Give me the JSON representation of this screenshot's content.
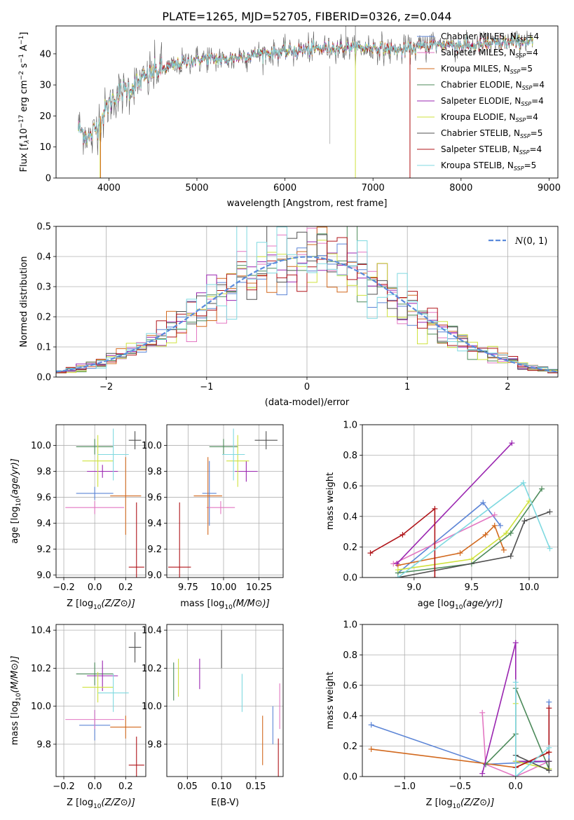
{
  "figure_title": "PLATE=1265, MJD=52705, FIBERID=0326, z=0.044",
  "legend": [
    "Chabrier MILES, N",
    "Salpeter MILES, N",
    "Kroupa MILES, N",
    "Chabrier ELODIE, N",
    "Salpeter ELODIE, N",
    "Kroupa ELODIE, N",
    "Chabrier STELIB, N",
    "Salpeter STELIB, N",
    "Kroupa STELIB, N"
  ],
  "legend_sub": "SSP",
  "legend_suffix": [
    "=4",
    "=4",
    "=5",
    "=4",
    "=4",
    "=4",
    "=5",
    "=4",
    "=5"
  ],
  "colors": [
    "#5c85d6",
    "#e377c2",
    "#d2691e",
    "#4c8a5a",
    "#9a25b0",
    "#cfe23e",
    "#505050",
    "#b0151a",
    "#7fd9e0"
  ],
  "gauss_color": "#5b8bdc",
  "chart_data": [
    {
      "id": "spectrum",
      "type": "line",
      "xlabel": "wavelength [Angstrom, rest frame]",
      "ylabel_parts": [
        "Flux [f",
        "λ",
        "10",
        "−17",
        " erg cm",
        "−2",
        " s",
        "−1",
        " A",
        "−1",
        "]"
      ],
      "xlim": [
        3400,
        9100
      ],
      "ylim": [
        0,
        49
      ],
      "xticks": [
        4000,
        5000,
        6000,
        7000,
        8000,
        9000
      ],
      "yticks": [
        0,
        10,
        20,
        30,
        40
      ],
      "continuum_knots": [
        [
          3650,
          16
        ],
        [
          3780,
          13
        ],
        [
          3900,
          18
        ],
        [
          4000,
          24
        ],
        [
          4100,
          27
        ],
        [
          4300,
          30
        ],
        [
          4500,
          34
        ],
        [
          4700,
          36
        ],
        [
          4900,
          37.5
        ],
        [
          5100,
          38.5
        ],
        [
          5300,
          38
        ],
        [
          5500,
          39
        ],
        [
          5700,
          40
        ],
        [
          5900,
          40.5
        ],
        [
          6100,
          41
        ],
        [
          6300,
          41.5
        ],
        [
          6500,
          42
        ],
        [
          6700,
          42
        ],
        [
          6900,
          42
        ],
        [
          7100,
          42
        ],
        [
          7300,
          41
        ],
        [
          7500,
          42
        ],
        [
          7700,
          43
        ],
        [
          7900,
          43
        ],
        [
          8100,
          42.5
        ],
        [
          8300,
          43
        ],
        [
          8500,
          43.5
        ],
        [
          8700,
          44
        ],
        [
          8820,
          44
        ]
      ],
      "dropouts": [
        [
          3900,
          0
        ],
        [
          6800,
          0
        ],
        [
          7420,
          0
        ]
      ]
    },
    {
      "id": "residuals",
      "type": "step",
      "xlabel": "(data-model)/error",
      "ylabel": "Normed distribution",
      "xlim": [
        -2.5,
        2.5
      ],
      "ylim": [
        0,
        0.5
      ],
      "xticks": [
        -2,
        -1,
        0,
        1,
        2
      ],
      "yticks": [
        0.0,
        0.1,
        0.2,
        0.3,
        0.4,
        0.5
      ],
      "gaussian_label": "N(0,1)",
      "bin_width": 0.1
    },
    {
      "id": "age_vs_Z",
      "type": "errorbar",
      "xlabel": "Z [log10(Z/Z⊙)]",
      "ylabel": "age [log10(age/yr)]",
      "xlim": [
        -0.25,
        0.33
      ],
      "ylim": [
        8.98,
        10.16
      ],
      "xticks": [
        -0.2,
        0.0,
        0.2
      ],
      "yticks": [
        9.0,
        9.2,
        9.4,
        9.6,
        9.8,
        10.0
      ],
      "points": [
        {
          "x": 0.0,
          "y": 9.63,
          "xerr": 0.12,
          "yerr": 0.05
        },
        {
          "x": 0.0,
          "y": 9.52,
          "xerr": 0.19,
          "yerr": 0.05
        },
        {
          "x": 0.2,
          "y": 9.61,
          "xerr": 0.1,
          "yerr": 0.3
        },
        {
          "x": 0.0,
          "y": 9.99,
          "xerr": 0.12,
          "yerr": 0.06
        },
        {
          "x": 0.05,
          "y": 9.8,
          "xerr": 0.1,
          "yerr": 0.05
        },
        {
          "x": 0.02,
          "y": 9.88,
          "xerr": 0.1,
          "yerr": 0.2
        },
        {
          "x": 0.26,
          "y": 10.04,
          "xerr": 0.04,
          "yerr": 0.07
        },
        {
          "x": 0.27,
          "y": 9.06,
          "xerr": 0.05,
          "yerr": 0.5
        },
        {
          "x": 0.12,
          "y": 9.93,
          "xerr": 0.1,
          "yerr": 0.2
        }
      ]
    },
    {
      "id": "age_vs_mass",
      "type": "errorbar",
      "xlabel": "mass [log10(M/M⊙)]",
      "xlim": [
        9.6,
        10.42
      ],
      "ylim": [
        8.98,
        10.16
      ],
      "xticks": [
        9.75,
        10.0,
        10.25
      ],
      "yticks": [
        9.0,
        9.2,
        9.4,
        9.6,
        9.8,
        10.0
      ],
      "points": [
        {
          "x": 9.9,
          "y": 9.63,
          "xerr": 0.05,
          "yerr": 0.25
        },
        {
          "x": 9.98,
          "y": 9.52,
          "xerr": 0.1,
          "yerr": 0.05
        },
        {
          "x": 9.89,
          "y": 9.61,
          "xerr": 0.1,
          "yerr": 0.3
        },
        {
          "x": 10.0,
          "y": 9.99,
          "xerr": 0.1,
          "yerr": 0.06
        },
        {
          "x": 10.16,
          "y": 9.8,
          "xerr": 0.08,
          "yerr": 0.08
        },
        {
          "x": 10.1,
          "y": 9.88,
          "xerr": 0.08,
          "yerr": 0.2
        },
        {
          "x": 10.3,
          "y": 10.04,
          "xerr": 0.08,
          "yerr": 0.07
        },
        {
          "x": 9.69,
          "y": 9.06,
          "xerr": 0.08,
          "yerr": 0.5
        },
        {
          "x": 10.07,
          "y": 9.93,
          "xerr": 0.08,
          "yerr": 0.2
        }
      ]
    },
    {
      "id": "weight_vs_age",
      "type": "line",
      "xlabel": "age [log10(age/yr)]",
      "ylabel": "mass weight",
      "xlim": [
        8.55,
        10.25
      ],
      "ylim": [
        0,
        1.0
      ],
      "xticks": [
        9.0,
        9.5,
        10.0
      ],
      "yticks": [
        0.0,
        0.2,
        0.4,
        0.6,
        0.8,
        1.0
      ],
      "series": [
        {
          "points": [
            [
              8.86,
              0.03
            ],
            [
              9.6,
              0.49
            ],
            [
              9.75,
              0.34
            ]
          ]
        },
        {
          "points": [
            [
              8.82,
              0.09
            ],
            [
              9.7,
              0.41
            ]
          ]
        },
        {
          "points": [
            [
              8.86,
              0.08
            ],
            [
              9.4,
              0.16
            ],
            [
              9.62,
              0.28
            ],
            [
              9.7,
              0.34
            ],
            [
              9.78,
              0.18
            ]
          ]
        },
        {
          "points": [
            [
              8.86,
              0.03
            ],
            [
              9.5,
              0.09
            ],
            [
              9.84,
              0.29
            ],
            [
              10.11,
              0.58
            ]
          ]
        },
        {
          "points": [
            [
              8.85,
              0.09
            ],
            [
              9.85,
              0.88
            ]
          ]
        },
        {
          "points": [
            [
              8.86,
              0.05
            ],
            [
              9.5,
              0.12
            ],
            [
              9.8,
              0.29
            ],
            [
              10.0,
              0.5
            ]
          ]
        },
        {
          "points": [
            [
              8.86,
              0.0
            ],
            [
              9.84,
              0.14
            ],
            [
              9.96,
              0.37
            ],
            [
              10.18,
              0.43
            ]
          ]
        },
        {
          "points": [
            [
              8.62,
              0.16
            ],
            [
              8.9,
              0.28
            ],
            [
              9.18,
              0.45
            ],
            [
              9.18,
              0.0
            ]
          ]
        },
        {
          "points": [
            [
              8.86,
              0.0
            ],
            [
              9.95,
              0.62
            ],
            [
              10.18,
              0.19
            ]
          ]
        }
      ]
    },
    {
      "id": "mass_vs_Z",
      "type": "errorbar",
      "xlabel": "Z [log10(Z/Z⊙)]",
      "ylabel": "mass [log10(M/M⊙)]",
      "xlim": [
        -0.25,
        0.33
      ],
      "ylim": [
        9.63,
        10.43
      ],
      "xticks": [
        -0.2,
        0.0,
        0.2
      ],
      "yticks": [
        9.8,
        10.0,
        10.2,
        10.4
      ],
      "points": [
        {
          "x": 0.0,
          "y": 9.9,
          "xerr": 0.1,
          "yerr": 0.08
        },
        {
          "x": 0.0,
          "y": 9.93,
          "xerr": 0.19,
          "yerr": 0.05
        },
        {
          "x": 0.2,
          "y": 9.89,
          "xerr": 0.1,
          "yerr": 0.06
        },
        {
          "x": 0.0,
          "y": 10.17,
          "xerr": 0.12,
          "yerr": 0.06
        },
        {
          "x": 0.05,
          "y": 10.16,
          "xerr": 0.1,
          "yerr": 0.08
        },
        {
          "x": 0.02,
          "y": 10.1,
          "xerr": 0.1,
          "yerr": 0.08
        },
        {
          "x": 0.26,
          "y": 10.31,
          "xerr": 0.04,
          "yerr": 0.08
        },
        {
          "x": 0.27,
          "y": 9.69,
          "xerr": 0.05,
          "yerr": 0.15
        },
        {
          "x": 0.12,
          "y": 10.07,
          "xerr": 0.1,
          "yerr": 0.1
        }
      ]
    },
    {
      "id": "mass_vs_ebv",
      "type": "errorbar",
      "xlabel": "E(B-V)",
      "xlim": [
        0.02,
        0.19
      ],
      "ylim": [
        9.63,
        10.43
      ],
      "xticks": [
        0.05,
        0.1,
        0.15
      ],
      "yticks": [
        9.8,
        10.0,
        10.2,
        10.4
      ],
      "points": [
        {
          "x": 0.175,
          "y": 9.9,
          "xerr": 0,
          "yerr": 0.1
        },
        {
          "x": 0.185,
          "y": 10.0,
          "xerr": 0,
          "yerr": 0.12
        },
        {
          "x": 0.16,
          "y": 9.82,
          "xerr": 0,
          "yerr": 0.13
        },
        {
          "x": 0.03,
          "y": 10.13,
          "xerr": 0,
          "yerr": 0.1
        },
        {
          "x": 0.068,
          "y": 10.17,
          "xerr": 0,
          "yerr": 0.08
        },
        {
          "x": 0.037,
          "y": 10.15,
          "xerr": 0,
          "yerr": 0.1
        },
        {
          "x": 0.1,
          "y": 10.3,
          "xerr": 0,
          "yerr": 0.1
        },
        {
          "x": 0.183,
          "y": 9.72,
          "xerr": 0,
          "yerr": 0.11
        },
        {
          "x": 0.13,
          "y": 10.07,
          "xerr": 0,
          "yerr": 0.1
        }
      ]
    },
    {
      "id": "weight_vs_Z",
      "type": "line",
      "xlabel": "Z [log10(Z/Z⊙)]",
      "ylabel": "mass weight",
      "xlim": [
        -1.38,
        0.38
      ],
      "ylim": [
        0,
        1.0
      ],
      "xticks": [
        -1.0,
        -0.5,
        0.0
      ],
      "yticks": [
        0.0,
        0.2,
        0.4,
        0.6,
        0.8,
        1.0
      ],
      "series": [
        {
          "points": [
            [
              -1.3,
              0.34
            ],
            [
              -0.27,
              0.08
            ],
            [
              0.3,
              0.1
            ],
            [
              0.3,
              0.49
            ]
          ]
        },
        {
          "points": [
            [
              -0.3,
              0.42
            ],
            [
              -0.27,
              0.08
            ],
            [
              0.0,
              0.0
            ],
            [
              0.3,
              0.1
            ]
          ]
        },
        {
          "points": [
            [
              -1.3,
              0.18
            ],
            [
              0.0,
              0.06
            ],
            [
              0.3,
              0.16
            ]
          ]
        },
        {
          "points": [
            [
              -0.27,
              0.08
            ],
            [
              0.0,
              0.28
            ],
            [
              0.0,
              0.58
            ],
            [
              0.3,
              0.05
            ]
          ]
        },
        {
          "points": [
            [
              -0.3,
              0.02
            ],
            [
              0.0,
              0.88
            ],
            [
              0.0,
              0.1
            ],
            [
              0.3,
              0.1
            ]
          ]
        },
        {
          "points": [
            [
              0.0,
              0.48
            ],
            [
              0.0,
              0.1
            ],
            [
              0.3,
              0.05
            ]
          ]
        },
        {
          "points": [
            [
              0.0,
              0.14
            ],
            [
              0.3,
              0.04
            ],
            [
              0.3,
              0.1
            ]
          ]
        },
        {
          "points": [
            [
              0.0,
              0.06
            ],
            [
              0.3,
              0.16
            ],
            [
              0.3,
              0.45
            ]
          ]
        },
        {
          "points": [
            [
              0.0,
              0.62
            ],
            [
              0.0,
              0.0
            ],
            [
              0.3,
              0.19
            ]
          ]
        }
      ]
    }
  ]
}
